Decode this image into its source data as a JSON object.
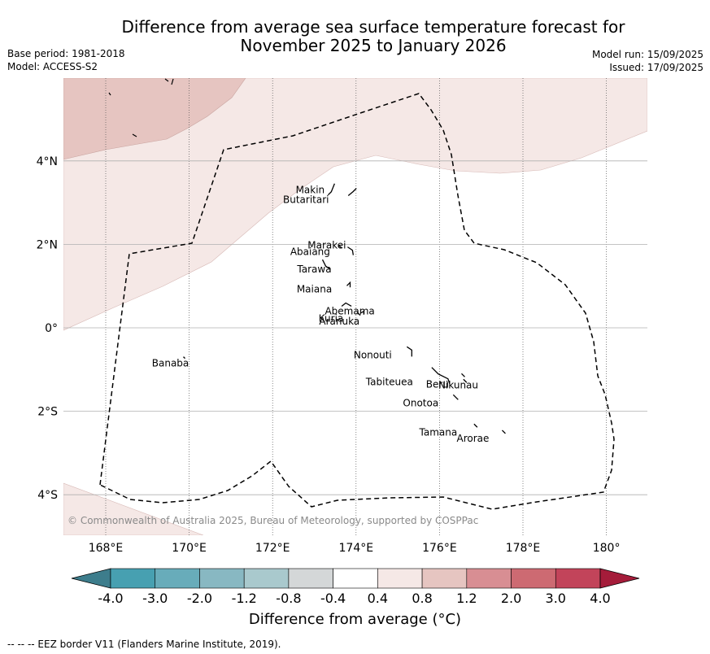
{
  "title_line1": "Difference from average sea surface temperature forecast for",
  "title_line2": "November 2025 to January 2026",
  "meta_left": {
    "base_period": "Base period: 1981-2018",
    "model": "Model: ACCESS-S2"
  },
  "meta_right": {
    "model_run": "Model run: 15/09/2025",
    "issued": "Issued: 17/09/2025"
  },
  "lon_ticks": [
    {
      "lon": 168,
      "label": "168°E"
    },
    {
      "lon": 170,
      "label": "170°E"
    },
    {
      "lon": 172,
      "label": "172°E"
    },
    {
      "lon": 174,
      "label": "174°E"
    },
    {
      "lon": 176,
      "label": "176°E"
    },
    {
      "lon": 178,
      "label": "178°E"
    },
    {
      "lon": 180,
      "label": "180°"
    }
  ],
  "lat_ticks": [
    {
      "lat": 4,
      "label": "4°N"
    },
    {
      "lat": 2,
      "label": "2°N"
    },
    {
      "lat": 0,
      "label": "0°"
    },
    {
      "lat": -2,
      "label": "2°S"
    },
    {
      "lat": -4,
      "label": "4°S"
    }
  ],
  "islands": [
    {
      "name": "Makin",
      "lon": 172.9,
      "lat": 3.3
    },
    {
      "name": "Butaritari",
      "lon": 172.8,
      "lat": 3.07
    },
    {
      "name": "Marakei",
      "lon": 173.3,
      "lat": 1.98
    },
    {
      "name": "Abaiang",
      "lon": 172.9,
      "lat": 1.82
    },
    {
      "name": "Tarawa",
      "lon": 173.0,
      "lat": 1.4
    },
    {
      "name": "Maiana",
      "lon": 173.0,
      "lat": 0.93
    },
    {
      "name": "Abemama",
      "lon": 173.85,
      "lat": 0.4
    },
    {
      "name": "Kuria",
      "lon": 173.4,
      "lat": 0.22
    },
    {
      "name": "Aranuka",
      "lon": 173.6,
      "lat": 0.16
    },
    {
      "name": "Nonouti",
      "lon": 174.4,
      "lat": -0.65
    },
    {
      "name": "Banaba",
      "lon": 169.55,
      "lat": -0.85
    },
    {
      "name": "Beru",
      "lon": 175.95,
      "lat": -1.35
    },
    {
      "name": "Nikunau",
      "lon": 176.45,
      "lat": -1.37
    },
    {
      "name": "Tabiteuea",
      "lon": 174.8,
      "lat": -1.3
    },
    {
      "name": "Onotoa",
      "lon": 175.55,
      "lat": -1.8
    },
    {
      "name": "Tamana",
      "lon": 175.97,
      "lat": -2.5
    },
    {
      "name": "Arorae",
      "lon": 176.8,
      "lat": -2.65
    }
  ],
  "credit": "© Commonwealth of Australia 2025, Bureau of Meteorology, supported by COSPPac",
  "colorbar": {
    "title": "Difference from average (°C)",
    "levels": [
      "-4.0",
      "-3.0",
      "-2.0",
      "-1.2",
      "-0.8",
      "-0.4",
      "0.4",
      "0.8",
      "1.2",
      "2.0",
      "3.0",
      "4.0"
    ],
    "colors": [
      "#3d7d8c",
      "#47a0b1",
      "#68acba",
      "#88b8c2",
      "#a9c9cd",
      "#d4d7d8",
      "#ffffff",
      "#f5e8e6",
      "#e6c5c1",
      "#d88e93",
      "#cd6a72",
      "#c2445a",
      "#a51c3a"
    ]
  },
  "footnote": "-- -- -- EEZ border V11 (Flanders Marine Institute, 2019)."
}
